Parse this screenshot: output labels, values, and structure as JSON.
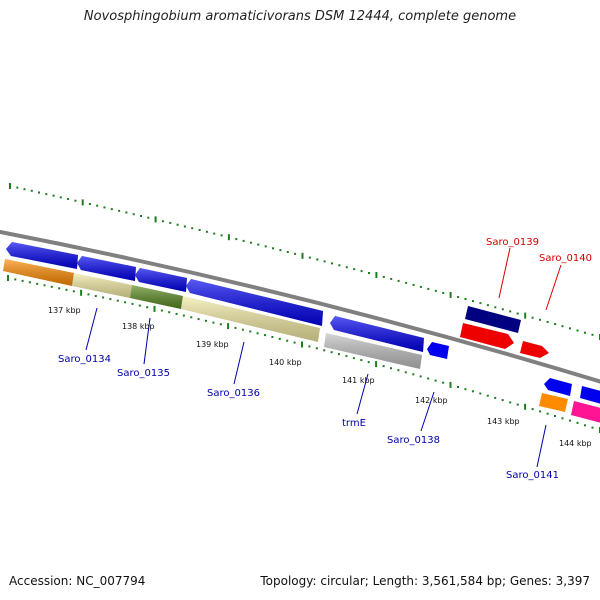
{
  "title": "Novosphingobium aromaticivorans DSM 12444, complete genome",
  "footer": {
    "accession": "Accession: NC_007794",
    "summary": "Topology: circular; Length: 3,561,584 bp; Genes: 3,397"
  },
  "colors": {
    "backbone": "#808080",
    "cds_forward": "#0000ee",
    "cds_reverse_orange": "#ff8c00",
    "cds_pale_yellow": "#f3eba4",
    "cds_olive": "#5a8a1f",
    "cds_grey": "#c0c0c0",
    "cds_navy": "#000080",
    "cds_red": "#ee0000",
    "cds_pink": "#ff1493",
    "tick": "#1e7d1e",
    "label_blue": "#0000aa",
    "label_red": "#d40000"
  },
  "ruler": [
    "137 kbp",
    "138 kbp",
    "139 kbp",
    "140 kbp",
    "141 kbp",
    "142 kbp",
    "143 kbp",
    "144 kbp"
  ],
  "genes": [
    "Saro_0134",
    "Saro_0135",
    "Saro_0136",
    "trmE",
    "Saro_0138",
    "Saro_0139",
    "Saro_0140",
    "Saro_0141"
  ]
}
